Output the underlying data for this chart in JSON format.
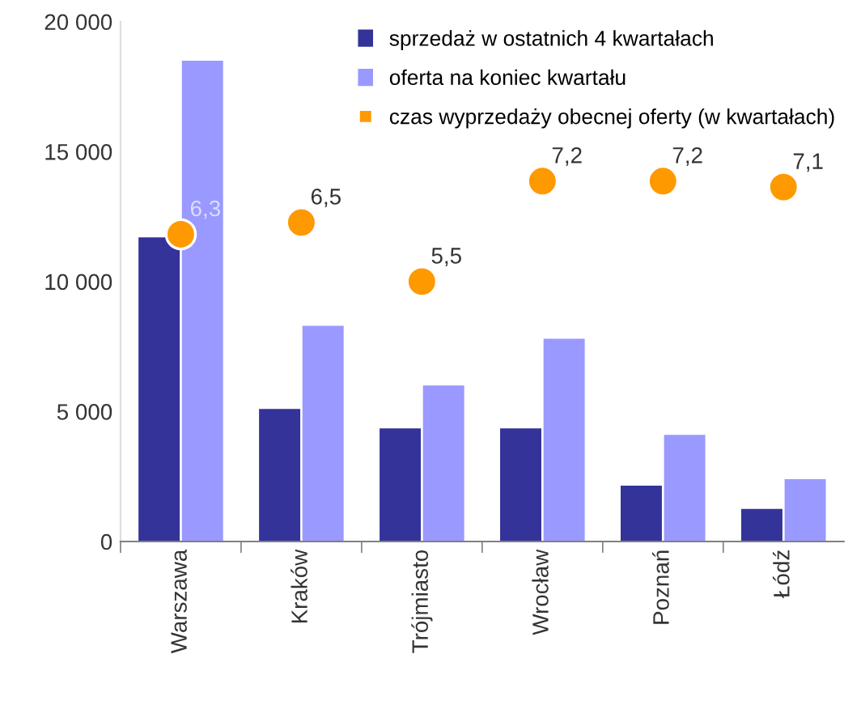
{
  "chart_data": {
    "type": "bar",
    "categories": [
      "Warszawa",
      "Kraków",
      "Trójmiasto",
      "Wrocław",
      "Poznań",
      "Łódź"
    ],
    "series": [
      {
        "name": "sprzedaż w ostatnich 4 kwartałach",
        "color": "#333399",
        "values": [
          11700,
          5100,
          4350,
          4350,
          2150,
          1250
        ]
      },
      {
        "name": "oferta na koniec kwartału",
        "color": "#9999ff",
        "values": [
          18500,
          8300,
          6000,
          7800,
          4100,
          2400
        ]
      },
      {
        "name": "czas wyprzedaży obecnej oferty (w kwartałach)",
        "type": "scatter",
        "axis": "y2",
        "color": "#ff9900",
        "values": [
          6.3,
          6.5,
          5.5,
          7.2,
          7.2,
          7.1
        ],
        "value_labels": [
          "6,3",
          "6,5",
          "5,5",
          "7,2",
          "7,2",
          "7,1"
        ]
      }
    ],
    "ylim": [
      0,
      20000
    ],
    "yticks": [
      {
        "value": 0,
        "label": "0"
      },
      {
        "value": 5000,
        "label": "5 000"
      },
      {
        "value": 10000,
        "label": "10 000"
      },
      {
        "value": 15000,
        "label": "15 000"
      },
      {
        "value": 20000,
        "label": "20 000"
      }
    ],
    "y2lim": [
      1.1,
      9.9
    ],
    "grid": false,
    "legend": "top right",
    "marker": "circle"
  }
}
